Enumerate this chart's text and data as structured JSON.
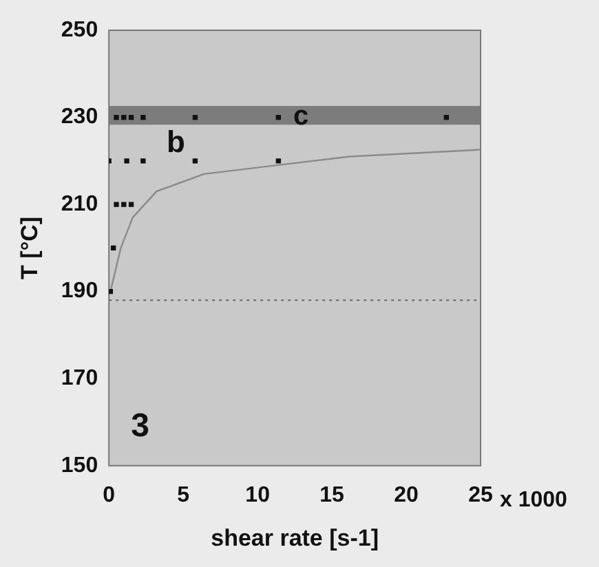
{
  "chart_data": {
    "type": "scatter",
    "xlabel": "shear rate [s-1]",
    "ylabel": "T [°C]",
    "xlim": [
      0,
      25
    ],
    "xticks": [
      0,
      5,
      10,
      15,
      20,
      25
    ],
    "ylim": [
      150,
      250
    ],
    "yticks": [
      150,
      170,
      190,
      210,
      230,
      250
    ],
    "grid": false,
    "legend": false,
    "marker": "square",
    "series": [
      {
        "color": "#111111",
        "x": [
          0.5,
          1,
          1.5,
          2.3,
          5.8,
          11.4,
          22.7,
          0,
          1.2,
          2.3,
          5.8,
          11.4,
          0.5,
          1,
          1.5,
          0.3,
          0.1
        ],
        "values": [
          230,
          230,
          230,
          230,
          230,
          230,
          230,
          220,
          220,
          220,
          220,
          220,
          210,
          210,
          210,
          200,
          190
        ]
      },
      {
        "type": "line",
        "color": "#8a8a8a",
        "marker": "none",
        "x": [
          0.1,
          0.8,
          1.6,
          3.2,
          6.4,
          11.3,
          16.2,
          24.6,
          25
        ],
        "values": [
          190,
          200,
          207,
          213,
          217,
          219,
          221,
          222.5,
          222.6
        ]
      }
    ],
    "bands": [
      {
        "axis": "y",
        "from": 228.3,
        "to": 232.6,
        "label": "c",
        "color": "#7c7c7c"
      }
    ],
    "ref_lines": [
      {
        "axis": "y",
        "value": 188,
        "color": "#666666",
        "line_style": "dotted"
      }
    ],
    "annotations": [
      "b",
      "3",
      "x 1000"
    ]
  }
}
